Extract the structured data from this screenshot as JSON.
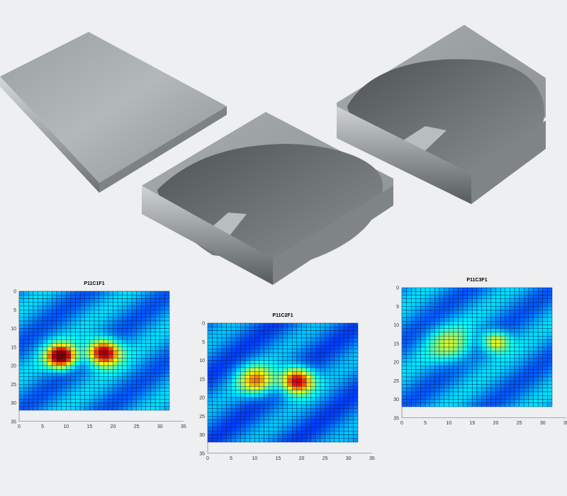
{
  "cushions": [
    {
      "shape": "flat-pad"
    },
    {
      "shape": "contoured-pad"
    },
    {
      "shape": "contoured-pad-deep"
    }
  ],
  "heatmaps": [
    {
      "title": "P11C1F1",
      "x_ticks": [
        "0",
        "5",
        "10",
        "15",
        "20",
        "25",
        "30",
        "35"
      ],
      "y_ticks": [
        "0",
        "5",
        "10",
        "15",
        "20",
        "25",
        "30",
        "35"
      ],
      "grid_size": 32,
      "pressure_hotspots": [
        {
          "x": 9.5,
          "y": 18,
          "sigma": 2.2,
          "peak": 0.92
        },
        {
          "x": 18.5,
          "y": 17,
          "sigma": 2.4,
          "peak": 0.88
        }
      ],
      "baseline": 0.15,
      "colors": {
        "low": "#1c3fd6",
        "high": "#e6342a"
      }
    },
    {
      "title": "P11C2F1",
      "x_ticks": [
        "0",
        "5",
        "10",
        "15",
        "20",
        "25",
        "30",
        "35"
      ],
      "y_ticks": [
        "0",
        "5",
        "10",
        "15",
        "20",
        "25",
        "30",
        "35"
      ],
      "grid_size": 32,
      "pressure_hotspots": [
        {
          "x": 11,
          "y": 16,
          "sigma": 2.6,
          "peak": 0.55
        },
        {
          "x": 19.5,
          "y": 16,
          "sigma": 2.4,
          "peak": 0.85
        }
      ],
      "baseline": 0.12,
      "colors": {
        "low": "#1c3fd6",
        "high": "#e6342a"
      }
    },
    {
      "title": "P11C3F1",
      "x_ticks": [
        "0",
        "5",
        "10",
        "15",
        "20",
        "25",
        "30",
        "35"
      ],
      "y_ticks": [
        "0",
        "5",
        "10",
        "15",
        "20",
        "25",
        "30",
        "35"
      ],
      "grid_size": 32,
      "pressure_hotspots": [
        {
          "x": 20.5,
          "y": 15,
          "sigma": 2.0,
          "peak": 0.45
        },
        {
          "x": 11,
          "y": 16,
          "sigma": 3.2,
          "peak": 0.3
        }
      ],
      "baseline": 0.15,
      "colors": {
        "low": "#1c3fd6",
        "high": "#e6342a"
      }
    }
  ]
}
